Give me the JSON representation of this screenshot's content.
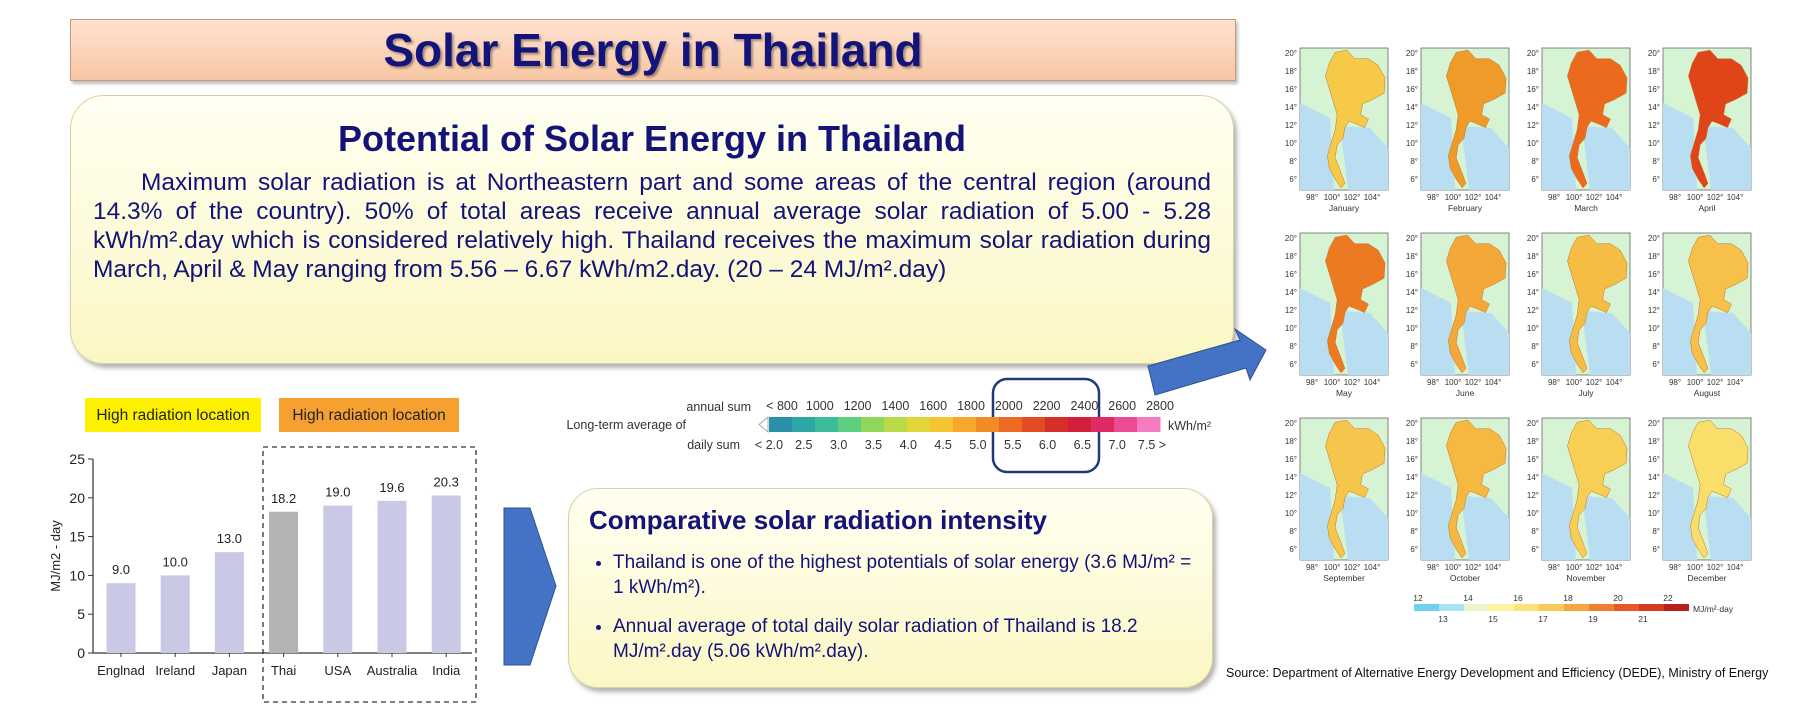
{
  "title": "Solar Energy in Thailand",
  "potential": {
    "heading": "Potential of Solar Energy in Thailand",
    "paragraph": "Maximum solar radiation is at Northeastern part and some areas of the central region (around 14.3% of the country). 50% of total areas receive annual average solar radiation of 5.00 - 5.28 kWh/m².day which is considered relatively high. Thailand receives the maximum solar radiation during  March, April & May ranging from 5.56 – 6.67 kWh/m2.day. (20 – 24 MJ/m².day)"
  },
  "location_labels": [
    {
      "text": "High radiation location",
      "color": "#fdf000"
    },
    {
      "text": "High radiation location",
      "color": "#f5a030"
    }
  ],
  "chart_data": {
    "type": "bar",
    "ylabel": "MJ/m2 - day",
    "categories": [
      "Englnad",
      "Ireland",
      "Japan",
      "Thai",
      "USA",
      "Australia",
      "India"
    ],
    "values": [
      9.0,
      10.0,
      13.0,
      18.2,
      19.0,
      19.6,
      20.3
    ],
    "value_labels": [
      "9.0",
      "10.0",
      "13.0",
      "18.2",
      "19.0",
      "19.6",
      "20.3"
    ],
    "colors": [
      "#c9c9e6",
      "#c9c9e6",
      "#c9c9e6",
      "#b3b3b3",
      "#c9c9e6",
      "#c9c9e6",
      "#c9c9e6"
    ],
    "ylim": [
      0,
      25
    ],
    "yticks": [
      0,
      5,
      10,
      15,
      20,
      25
    ]
  },
  "colorbar": {
    "caption": "Long-term average of",
    "annual_title": "annual sum",
    "daily_title": "daily sum",
    "unit": "kWh/m²",
    "annual_labels": [
      "< 800",
      "1000",
      "1200",
      "1400",
      "1600",
      "1800",
      "2000",
      "2200",
      "2400",
      "2600",
      "2800"
    ],
    "daily_labels": [
      "< 2.0",
      "2.5",
      "3.0",
      "3.5",
      "4.0",
      "4.5",
      "5.0",
      "5.5",
      "6.0",
      "6.5",
      "7.0",
      "7.5 >"
    ],
    "colors": [
      "#2b8fa8",
      "#2fa6a6",
      "#3cbd9a",
      "#5dcf7e",
      "#8fd65a",
      "#b9d946",
      "#e2d63a",
      "#f4c433",
      "#f7a72b",
      "#f28a25",
      "#ec6a22",
      "#e34c22",
      "#d62f28",
      "#d31f3b",
      "#e02a64",
      "#ec4b93",
      "#f57cc0"
    ]
  },
  "maps": {
    "lat_ticks": [
      "20°",
      "18°",
      "16°",
      "14°",
      "12°",
      "10°",
      "8°",
      "6°"
    ],
    "lon_ticks": [
      "98°",
      "100°",
      "102°",
      "104°"
    ],
    "panels": [
      {
        "month": "January",
        "color": "#f7c948"
      },
      {
        "month": "February",
        "color": "#f09a2a"
      },
      {
        "month": "March",
        "color": "#ec6a1e"
      },
      {
        "month": "April",
        "color": "#e0451a"
      },
      {
        "month": "May",
        "color": "#ec7a22"
      },
      {
        "month": "June",
        "color": "#f4a83a"
      },
      {
        "month": "July",
        "color": "#f6bd44"
      },
      {
        "month": "August",
        "color": "#f6c04a"
      },
      {
        "month": "September",
        "color": "#f6c54c"
      },
      {
        "month": "October",
        "color": "#f5b840"
      },
      {
        "month": "November",
        "color": "#f7cf55"
      },
      {
        "month": "December",
        "color": "#f9df6a"
      }
    ],
    "legend": {
      "labels": [
        "12",
        "13",
        "14",
        "15",
        "16",
        "17",
        "18",
        "19",
        "20",
        "21",
        "22"
      ],
      "colors": [
        "#6fd0f0",
        "#a8e4f5",
        "#e8f6c8",
        "#fff4a0",
        "#fde27a",
        "#fbc85a",
        "#f7a63e",
        "#f08030",
        "#e55a24",
        "#d63a1e",
        "#b8201a"
      ],
      "unit": "MJ/m²·day"
    }
  },
  "comparative": {
    "heading": "Comparative solar radiation intensity",
    "bullets": [
      "Thailand is one of the highest potentials of solar energy (3.6 MJ/m² = 1 kWh/m²).",
      "Annual average of total daily solar radiation of Thailand is 18.2 MJ/m².day (5.06 kWh/m².day)."
    ]
  },
  "source": "Source:  Department of Alternative Energy Development and Efficiency (DEDE), Ministry of Energy"
}
